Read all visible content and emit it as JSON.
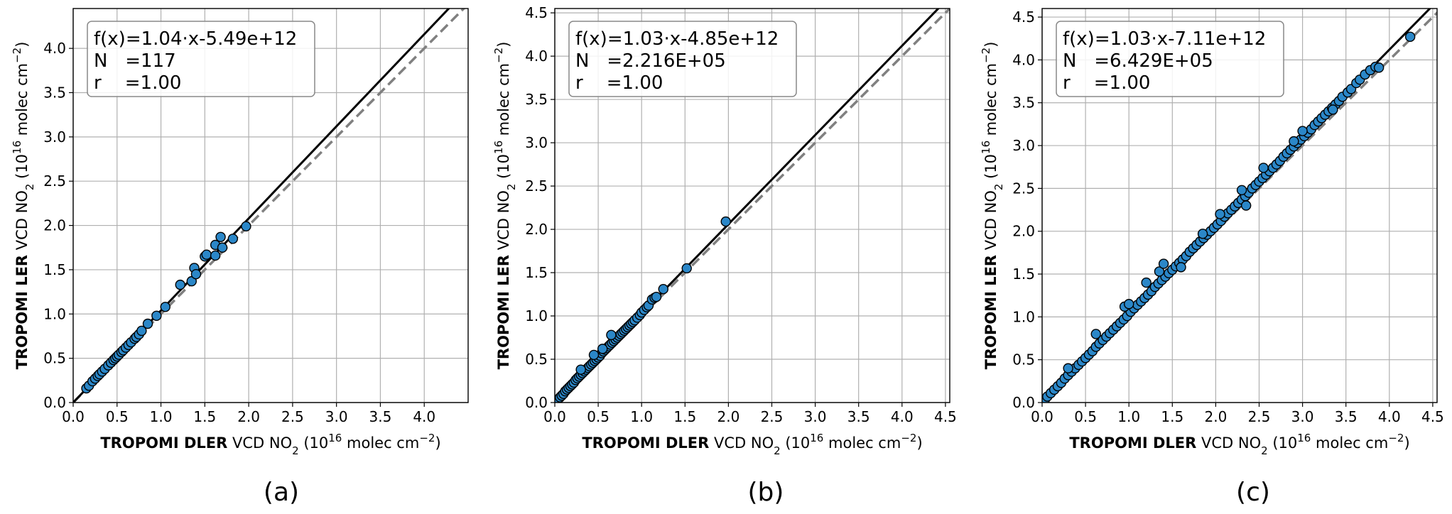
{
  "chart_data": [
    {
      "type": "scatter",
      "panel_label": "(a)",
      "xlabel": {
        "bold": "TROPOMI DLER",
        "rest": "VCD NO",
        "sub": "2",
        "unit_open": "(10",
        "sup": "16",
        "unit_mid": "molec cm",
        "unit_exp": "−2",
        "unit_close": ")"
      },
      "ylabel": {
        "bold": "TROPOMI LER",
        "rest": "VCD NO",
        "sub": "2",
        "unit_open": "(10",
        "sup": "16",
        "unit_mid": "molec cm",
        "unit_exp": "−2",
        "unit_close": ")"
      },
      "xlim": [
        0,
        4.5
      ],
      "ylim": [
        0,
        4.45
      ],
      "xticks": [
        "0.0",
        "0.5",
        "1.0",
        "1.5",
        "2.0",
        "2.5",
        "3.0",
        "3.5",
        "4.0"
      ],
      "yticks": [
        "0.0",
        "0.5",
        "1.0",
        "1.5",
        "2.0",
        "2.5",
        "3.0",
        "3.5",
        "4.0"
      ],
      "grid": true,
      "legend": {
        "placement": "top-left",
        "lines": [
          "f(x)=1.04·x-5.49e+12",
          "N   =117",
          "r    =1.00"
        ]
      },
      "fit": {
        "slope": 1.04,
        "intercept": -0.000549
      },
      "identity_line": true,
      "points": [
        [
          0.15,
          0.16
        ],
        [
          0.18,
          0.19
        ],
        [
          0.22,
          0.24
        ],
        [
          0.25,
          0.27
        ],
        [
          0.28,
          0.3
        ],
        [
          0.3,
          0.32
        ],
        [
          0.33,
          0.35
        ],
        [
          0.36,
          0.38
        ],
        [
          0.4,
          0.42
        ],
        [
          0.43,
          0.45
        ],
        [
          0.46,
          0.48
        ],
        [
          0.48,
          0.5
        ],
        [
          0.5,
          0.52
        ],
        [
          0.52,
          0.54
        ],
        [
          0.55,
          0.57
        ],
        [
          0.57,
          0.59
        ],
        [
          0.6,
          0.62
        ],
        [
          0.63,
          0.65
        ],
        [
          0.66,
          0.68
        ],
        [
          0.7,
          0.72
        ],
        [
          0.72,
          0.74
        ],
        [
          0.75,
          0.77
        ],
        [
          0.78,
          0.81
        ],
        [
          0.85,
          0.89
        ],
        [
          0.95,
          0.98
        ],
        [
          1.05,
          1.08
        ],
        [
          1.22,
          1.33
        ],
        [
          1.35,
          1.37
        ],
        [
          1.38,
          1.52
        ],
        [
          1.4,
          1.45
        ],
        [
          1.5,
          1.65
        ],
        [
          1.52,
          1.67
        ],
        [
          1.62,
          1.66
        ],
        [
          1.62,
          1.78
        ],
        [
          1.68,
          1.87
        ],
        [
          1.7,
          1.75
        ],
        [
          1.82,
          1.85
        ],
        [
          1.97,
          1.99
        ]
      ]
    },
    {
      "type": "scatter",
      "panel_label": "(b)",
      "xlabel": {
        "bold": "TROPOMI DLER",
        "rest": "VCD NO",
        "sub": "2",
        "unit_open": "(10",
        "sup": "16",
        "unit_mid": "molec cm",
        "unit_exp": "−2",
        "unit_close": ")"
      },
      "ylabel": {
        "bold": "TROPOMI LER",
        "rest": "VCD NO",
        "sub": "2",
        "unit_open": "(10",
        "sup": "16",
        "unit_mid": "molec cm",
        "unit_exp": "−2",
        "unit_close": ")"
      },
      "xlim": [
        0,
        4.55
      ],
      "ylim": [
        0,
        4.55
      ],
      "xticks": [
        "0.0",
        "0.5",
        "1.0",
        "1.5",
        "2.0",
        "2.5",
        "3.0",
        "3.5",
        "4.0",
        "4.5"
      ],
      "yticks": [
        "0.0",
        "0.5",
        "1.0",
        "1.5",
        "2.0",
        "2.5",
        "3.0",
        "3.5",
        "4.0",
        "4.5"
      ],
      "grid": true,
      "legend": {
        "placement": "top-left",
        "lines": [
          "f(x)=1.03·x-4.85e+12",
          "N   =2.216E+05",
          "r    =1.00"
        ]
      },
      "fit": {
        "slope": 1.03,
        "intercept": -0.000485
      },
      "identity_line": true,
      "points": [
        [
          0.02,
          0.02
        ],
        [
          0.04,
          0.04
        ],
        [
          0.06,
          0.06
        ],
        [
          0.08,
          0.08
        ],
        [
          0.1,
          0.1
        ],
        [
          0.12,
          0.13
        ],
        [
          0.14,
          0.15
        ],
        [
          0.16,
          0.17
        ],
        [
          0.18,
          0.19
        ],
        [
          0.2,
          0.21
        ],
        [
          0.22,
          0.23
        ],
        [
          0.24,
          0.26
        ],
        [
          0.26,
          0.28
        ],
        [
          0.28,
          0.3
        ],
        [
          0.3,
          0.32
        ],
        [
          0.32,
          0.34
        ],
        [
          0.34,
          0.36
        ],
        [
          0.36,
          0.38
        ],
        [
          0.38,
          0.4
        ],
        [
          0.4,
          0.42
        ],
        [
          0.42,
          0.44
        ],
        [
          0.44,
          0.46
        ],
        [
          0.46,
          0.48
        ],
        [
          0.48,
          0.5
        ],
        [
          0.5,
          0.52
        ],
        [
          0.52,
          0.54
        ],
        [
          0.54,
          0.57
        ],
        [
          0.56,
          0.59
        ],
        [
          0.58,
          0.61
        ],
        [
          0.6,
          0.63
        ],
        [
          0.62,
          0.65
        ],
        [
          0.64,
          0.67
        ],
        [
          0.66,
          0.69
        ],
        [
          0.68,
          0.71
        ],
        [
          0.7,
          0.73
        ],
        [
          0.72,
          0.75
        ],
        [
          0.74,
          0.77
        ],
        [
          0.76,
          0.79
        ],
        [
          0.78,
          0.81
        ],
        [
          0.8,
          0.83
        ],
        [
          0.82,
          0.85
        ],
        [
          0.84,
          0.87
        ],
        [
          0.86,
          0.89
        ],
        [
          0.88,
          0.91
        ],
        [
          0.9,
          0.93
        ],
        [
          0.92,
          0.95
        ],
        [
          0.95,
          0.98
        ],
        [
          0.98,
          1.01
        ],
        [
          1.0,
          1.04
        ],
        [
          1.03,
          1.07
        ],
        [
          1.06,
          1.1
        ],
        [
          1.08,
          1.12
        ],
        [
          1.12,
          1.19
        ],
        [
          1.15,
          1.21
        ],
        [
          1.17,
          1.22
        ],
        [
          1.25,
          1.31
        ],
        [
          1.52,
          1.55
        ],
        [
          1.97,
          2.09
        ],
        [
          0.65,
          0.78
        ],
        [
          0.45,
          0.55
        ],
        [
          0.3,
          0.38
        ],
        [
          0.55,
          0.62
        ]
      ]
    },
    {
      "type": "scatter",
      "panel_label": "(c)",
      "xlabel": {
        "bold": "TROPOMI DLER",
        "rest": "VCD NO",
        "sub": "2",
        "unit_open": "(10",
        "sup": "16",
        "unit_mid": "molec cm",
        "unit_exp": "−2",
        "unit_close": ")"
      },
      "ylabel": {
        "bold": "TROPOMI LER",
        "rest": "VCD NO",
        "sub": "2",
        "unit_open": "(10",
        "sup": "16",
        "unit_mid": "molec cm",
        "unit_exp": "−2",
        "unit_close": ")"
      },
      "xlim": [
        0,
        4.55
      ],
      "ylim": [
        0,
        4.6
      ],
      "xticks": [
        "0.0",
        "0.5",
        "1.0",
        "1.5",
        "2.0",
        "2.5",
        "3.0",
        "3.5",
        "4.0",
        "4.5"
      ],
      "yticks": [
        "0.0",
        "0.5",
        "1.0",
        "1.5",
        "2.0",
        "2.5",
        "3.0",
        "3.5",
        "4.0",
        "4.5"
      ],
      "grid": true,
      "legend": {
        "placement": "top-left",
        "lines": [
          "f(x)=1.03·x-7.11e+12",
          "N   =6.429E+05",
          "r    =1.00"
        ]
      },
      "fit": {
        "slope": 1.03,
        "intercept": -0.000711
      },
      "identity_line": true,
      "points": [
        [
          0.03,
          0.03
        ],
        [
          0.06,
          0.07
        ],
        [
          0.1,
          0.11
        ],
        [
          0.14,
          0.15
        ],
        [
          0.18,
          0.19
        ],
        [
          0.22,
          0.23
        ],
        [
          0.26,
          0.28
        ],
        [
          0.3,
          0.32
        ],
        [
          0.34,
          0.36
        ],
        [
          0.38,
          0.4
        ],
        [
          0.42,
          0.44
        ],
        [
          0.46,
          0.48
        ],
        [
          0.5,
          0.52
        ],
        [
          0.54,
          0.56
        ],
        [
          0.58,
          0.6
        ],
        [
          0.62,
          0.65
        ],
        [
          0.66,
          0.69
        ],
        [
          0.7,
          0.73
        ],
        [
          0.74,
          0.77
        ],
        [
          0.78,
          0.81
        ],
        [
          0.82,
          0.85
        ],
        [
          0.86,
          0.89
        ],
        [
          0.9,
          0.93
        ],
        [
          0.94,
          0.97
        ],
        [
          0.98,
          1.01
        ],
        [
          1.02,
          1.06
        ],
        [
          1.06,
          1.1
        ],
        [
          1.1,
          1.14
        ],
        [
          1.14,
          1.18
        ],
        [
          1.18,
          1.22
        ],
        [
          1.22,
          1.26
        ],
        [
          1.26,
          1.3
        ],
        [
          1.3,
          1.35
        ],
        [
          1.34,
          1.39
        ],
        [
          1.38,
          1.43
        ],
        [
          1.42,
          1.47
        ],
        [
          1.46,
          1.51
        ],
        [
          1.5,
          1.55
        ],
        [
          1.54,
          1.59
        ],
        [
          1.58,
          1.63
        ],
        [
          1.62,
          1.67
        ],
        [
          1.66,
          1.71
        ],
        [
          1.7,
          1.76
        ],
        [
          1.74,
          1.8
        ],
        [
          1.78,
          1.84
        ],
        [
          1.82,
          1.88
        ],
        [
          1.86,
          1.92
        ],
        [
          1.9,
          1.96
        ],
        [
          1.94,
          2.0
        ],
        [
          1.98,
          2.04
        ],
        [
          2.02,
          2.08
        ],
        [
          2.06,
          2.12
        ],
        [
          2.1,
          2.17
        ],
        [
          2.14,
          2.21
        ],
        [
          2.18,
          2.25
        ],
        [
          2.22,
          2.29
        ],
        [
          2.26,
          2.33
        ],
        [
          2.3,
          2.37
        ],
        [
          2.34,
          2.41
        ],
        [
          2.38,
          2.45
        ],
        [
          2.42,
          2.5
        ],
        [
          2.46,
          2.54
        ],
        [
          2.5,
          2.58
        ],
        [
          2.54,
          2.62
        ],
        [
          2.58,
          2.66
        ],
        [
          2.62,
          2.7
        ],
        [
          2.66,
          2.74
        ],
        [
          2.7,
          2.78
        ],
        [
          2.74,
          2.82
        ],
        [
          2.78,
          2.87
        ],
        [
          2.82,
          2.91
        ],
        [
          2.86,
          2.95
        ],
        [
          2.9,
          2.99
        ],
        [
          2.94,
          3.03
        ],
        [
          2.98,
          3.07
        ],
        [
          3.02,
          3.11
        ],
        [
          3.06,
          3.15
        ],
        [
          3.1,
          3.19
        ],
        [
          3.14,
          3.24
        ],
        [
          3.18,
          3.28
        ],
        [
          3.22,
          3.32
        ],
        [
          3.26,
          3.36
        ],
        [
          3.3,
          3.4
        ],
        [
          3.34,
          3.44
        ],
        [
          3.38,
          3.48
        ],
        [
          3.42,
          3.52
        ],
        [
          3.46,
          3.57
        ],
        [
          3.52,
          3.62
        ],
        [
          3.56,
          3.66
        ],
        [
          3.62,
          3.73
        ],
        [
          3.66,
          3.77
        ],
        [
          3.72,
          3.83
        ],
        [
          3.78,
          3.88
        ],
        [
          3.84,
          3.92
        ],
        [
          3.88,
          3.91
        ],
        [
          4.24,
          4.27
        ],
        [
          0.95,
          1.12
        ],
        [
          1.0,
          1.15
        ],
        [
          1.2,
          1.4
        ],
        [
          1.35,
          1.53
        ],
        [
          1.4,
          1.62
        ],
        [
          1.85,
          1.97
        ],
        [
          2.05,
          2.2
        ],
        [
          2.3,
          2.48
        ],
        [
          2.55,
          2.74
        ],
        [
          2.9,
          3.05
        ],
        [
          3.0,
          3.17
        ],
        [
          3.35,
          3.42
        ],
        [
          2.35,
          2.3
        ],
        [
          1.6,
          1.58
        ],
        [
          0.62,
          0.8
        ],
        [
          0.3,
          0.4
        ]
      ]
    }
  ]
}
